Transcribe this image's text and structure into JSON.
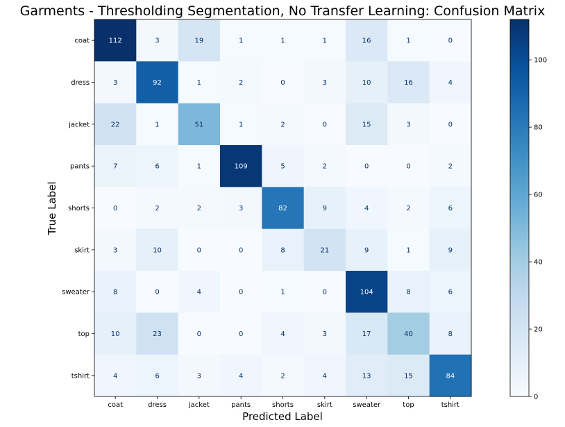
{
  "chart_data": {
    "type": "heatmap",
    "title": "Garments - Thresholding Segmentation, No Transfer Learning: Confusion Matrix",
    "xlabel": "Predicted Label",
    "ylabel": "True Label",
    "x_categories": [
      "coat",
      "dress",
      "jacket",
      "pants",
      "shorts",
      "skirt",
      "sweater",
      "top",
      "tshirt"
    ],
    "y_categories": [
      "coat",
      "dress",
      "jacket",
      "pants",
      "shorts",
      "skirt",
      "sweater",
      "top",
      "tshirt"
    ],
    "values": [
      [
        112,
        3,
        19,
        1,
        1,
        1,
        16,
        1,
        0
      ],
      [
        3,
        92,
        1,
        2,
        0,
        3,
        10,
        16,
        4
      ],
      [
        22,
        1,
        51,
        1,
        2,
        0,
        15,
        3,
        0
      ],
      [
        7,
        6,
        1,
        109,
        5,
        2,
        0,
        0,
        2
      ],
      [
        0,
        2,
        2,
        3,
        82,
        9,
        4,
        2,
        6
      ],
      [
        3,
        10,
        0,
        0,
        8,
        21,
        9,
        1,
        9
      ],
      [
        8,
        0,
        4,
        0,
        1,
        0,
        104,
        8,
        6
      ],
      [
        10,
        23,
        0,
        0,
        4,
        3,
        17,
        40,
        8
      ],
      [
        4,
        6,
        3,
        4,
        2,
        4,
        13,
        15,
        84
      ]
    ],
    "colormap": "Blues",
    "colorbar": {
      "min": 0,
      "max": 112,
      "ticks": [
        0,
        20,
        40,
        60,
        80,
        100
      ]
    },
    "grid": false
  }
}
